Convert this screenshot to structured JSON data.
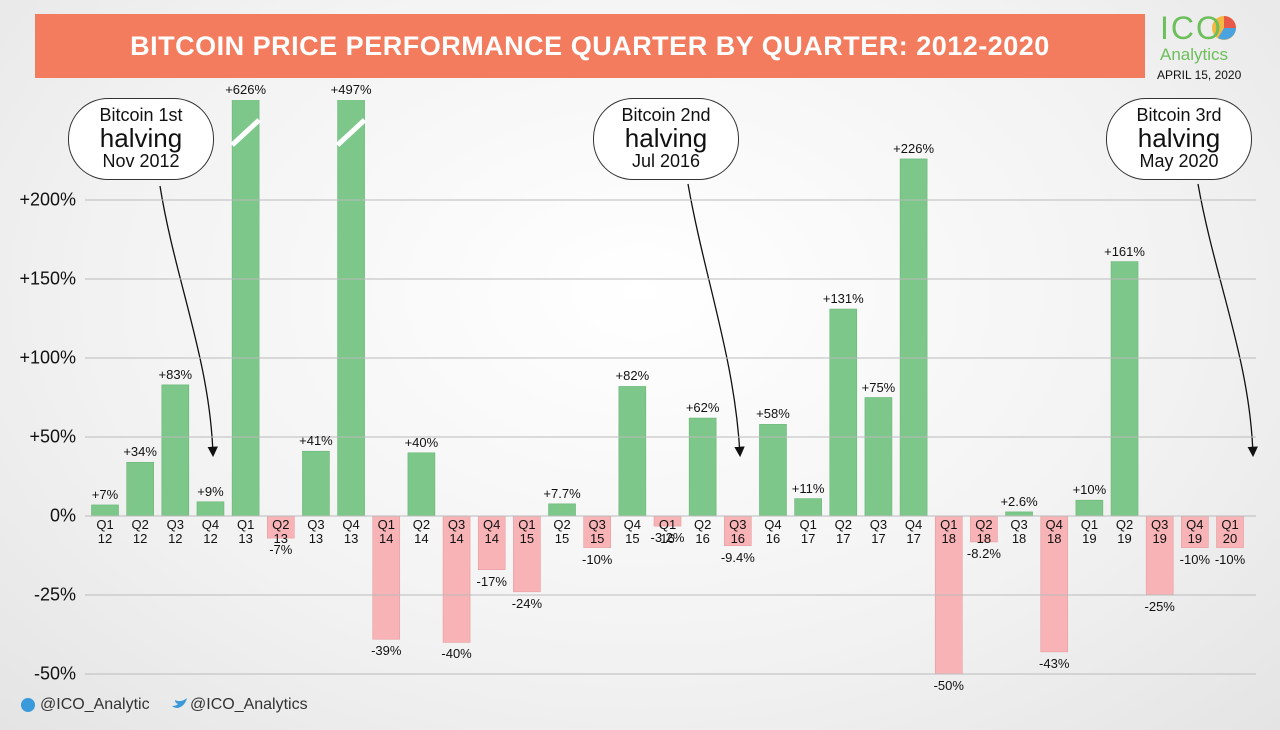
{
  "header": {
    "title": "BITCOIN PRICE PERFORMANCE QUARTER BY QUARTER: 2012-2020",
    "brand": "ICO",
    "brand_sub": "Analytics",
    "date": "APRIL 15, 2020"
  },
  "footer": {
    "telegram": "@ICO_Analytic",
    "twitter": "@ICO_Analytics"
  },
  "chart_data": {
    "type": "bar",
    "categories": [
      "Q1 12",
      "Q2 12",
      "Q3 12",
      "Q4 12",
      "Q1 13",
      "Q2 13",
      "Q3 13",
      "Q4 13",
      "Q1 14",
      "Q2 14",
      "Q3 14",
      "Q4 14",
      "Q1 15",
      "Q2 15",
      "Q3 15",
      "Q4 15",
      "Q1 16",
      "Q2 16",
      "Q3 16",
      "Q4 16",
      "Q1 17",
      "Q2 17",
      "Q3 17",
      "Q4 17",
      "Q1 18",
      "Q2 18",
      "Q3 18",
      "Q4 18",
      "Q1 19",
      "Q2 19",
      "Q3 19",
      "Q4 19",
      "Q1 20"
    ],
    "values": [
      7,
      34,
      83,
      9,
      626,
      -7,
      41,
      497,
      -39,
      40,
      -40,
      -17,
      -24,
      7.7,
      -10,
      82,
      -3.2,
      62,
      -9.4,
      58,
      11,
      131,
      75,
      226,
      -50,
      -8.2,
      2.6,
      -43,
      10,
      161,
      -25,
      -10,
      -10
    ],
    "value_labels": [
      "+7%",
      "+34%",
      "+83%",
      "+9%",
      "+626%",
      "-7%",
      "+41%",
      "+497%",
      "-39%",
      "+40%",
      "-40%",
      "-17%",
      "-24%",
      "+7.7%",
      "-10%",
      "+82%",
      "-3.2%",
      "+62%",
      "-9.4%",
      "+58%",
      "+11%",
      "+131%",
      "+75%",
      "+226%",
      "-50%",
      "-8.2%",
      "+2.6%",
      "-43%",
      "+10%",
      "+161%",
      "-25%",
      "-10%",
      "-10%"
    ],
    "positive_color": "#7dc78a",
    "negative_color": "#f7b3b6",
    "ylim": [
      -55,
      270
    ],
    "yticks": [
      {
        "value": 200,
        "label": "+200%"
      },
      {
        "value": 150,
        "label": "+150%"
      },
      {
        "value": 100,
        "label": "+100%"
      },
      {
        "value": 50,
        "label": "+50%"
      },
      {
        "value": 0,
        "label": "0%"
      },
      {
        "value": -25,
        "label": "-25%"
      },
      {
        "value": -50,
        "label": "-50%"
      }
    ],
    "grid": true,
    "annotations": [
      {
        "lines": [
          "Bitcoin 1st",
          "halving",
          "Nov 2012"
        ]
      },
      {
        "lines": [
          "Bitcoin 2nd",
          "halving",
          "Jul 2016"
        ]
      },
      {
        "lines": [
          "Bitcoin 3rd",
          "halving",
          "May 2020"
        ]
      }
    ]
  }
}
